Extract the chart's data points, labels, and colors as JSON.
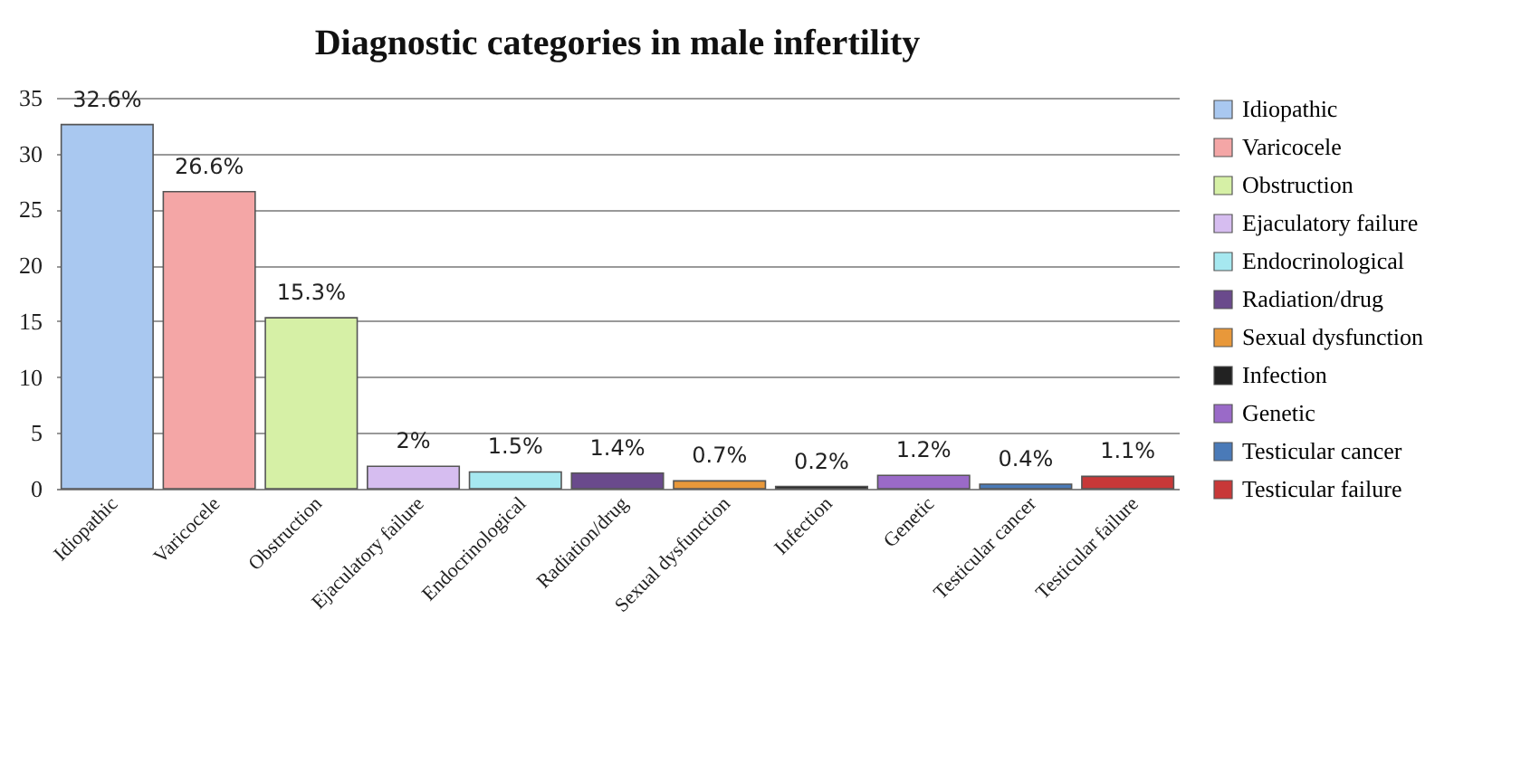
{
  "chart_data": {
    "type": "bar",
    "title": "Diagnostic categories in male infertility",
    "categories": [
      "Idiopathic",
      "Varicocele",
      "Obstruction",
      "Ejaculatory failure",
      "Endocrinological",
      "Radiation/drug",
      "Sexual dysfunction",
      "Infection",
      "Genetic",
      "Testicular cancer",
      "Testicular failure"
    ],
    "series": [
      {
        "name": "Idiopathic",
        "color": "#a9c8f0",
        "values": [
          32.6,
          null,
          null,
          null,
          null,
          null,
          null,
          null,
          null,
          null,
          null
        ],
        "value_labels": [
          "32.6%",
          null,
          null,
          null,
          null,
          null,
          null,
          null,
          null,
          null,
          null
        ]
      },
      {
        "name": "Varicocele",
        "color": "#f4a6a6",
        "values": [
          null,
          26.6,
          null,
          null,
          null,
          null,
          null,
          null,
          null,
          null,
          null
        ],
        "value_labels": [
          null,
          "26.6%",
          null,
          null,
          null,
          null,
          null,
          null,
          null,
          null,
          null
        ]
      },
      {
        "name": "Obstruction",
        "color": "#d6f0a6",
        "values": [
          null,
          null,
          15.3,
          null,
          null,
          null,
          null,
          null,
          null,
          null,
          null
        ],
        "value_labels": [
          null,
          null,
          "15.3%",
          null,
          null,
          null,
          null,
          null,
          null,
          null,
          null
        ]
      },
      {
        "name": "Ejaculatory failure",
        "color": "#d6bdf0",
        "values": [
          null,
          null,
          null,
          2,
          null,
          null,
          null,
          null,
          null,
          null,
          null
        ],
        "value_labels": [
          null,
          null,
          null,
          "2%",
          null,
          null,
          null,
          null,
          null,
          null,
          null
        ]
      },
      {
        "name": "Endocrinological",
        "color": "#a6e8f0",
        "values": [
          null,
          null,
          null,
          null,
          1.5,
          null,
          null,
          null,
          null,
          null,
          null
        ],
        "value_labels": [
          null,
          null,
          null,
          null,
          "1.5%",
          null,
          null,
          null,
          null,
          null,
          null
        ]
      },
      {
        "name": "Radiation/drug",
        "color": "#6a4a8c",
        "values": [
          null,
          null,
          null,
          null,
          null,
          1.4,
          null,
          null,
          null,
          null,
          null
        ],
        "value_labels": [
          null,
          null,
          null,
          null,
          null,
          "1.4%",
          null,
          null,
          null,
          null,
          null
        ]
      },
      {
        "name": "Sexual dysfunction",
        "color": "#e8983a",
        "values": [
          null,
          null,
          null,
          null,
          null,
          null,
          0.7,
          null,
          null,
          null,
          null
        ],
        "value_labels": [
          null,
          null,
          null,
          null,
          null,
          null,
          "0.7%",
          null,
          null,
          null,
          null
        ]
      },
      {
        "name": "Infection",
        "color": "#222222",
        "values": [
          null,
          null,
          null,
          null,
          null,
          null,
          null,
          0.2,
          null,
          null,
          null
        ],
        "value_labels": [
          null,
          null,
          null,
          null,
          null,
          null,
          null,
          "0.2%",
          null,
          null,
          null
        ]
      },
      {
        "name": "Genetic",
        "color": "#9a6ac8",
        "values": [
          null,
          null,
          null,
          null,
          null,
          null,
          null,
          null,
          1.2,
          null,
          null
        ],
        "value_labels": [
          null,
          null,
          null,
          null,
          null,
          null,
          null,
          null,
          "1.2%",
          null,
          null
        ]
      },
      {
        "name": "Testicular cancer",
        "color": "#4a7ab8",
        "values": [
          null,
          null,
          null,
          null,
          null,
          null,
          null,
          null,
          null,
          0.4,
          null
        ],
        "value_labels": [
          null,
          null,
          null,
          null,
          null,
          null,
          null,
          null,
          null,
          "0.4%",
          null
        ]
      },
      {
        "name": "Testicular failure",
        "color": "#c83838",
        "values": [
          null,
          null,
          null,
          null,
          null,
          null,
          null,
          null,
          null,
          null,
          1.1
        ],
        "value_labels": [
          null,
          null,
          null,
          null,
          null,
          null,
          null,
          null,
          null,
          null,
          "1.1%"
        ]
      }
    ],
    "ylim": [
      0,
      35
    ],
    "yticks": [
      0,
      5,
      10,
      15,
      20,
      25,
      30,
      35
    ],
    "grid": "y",
    "legend": "right"
  }
}
